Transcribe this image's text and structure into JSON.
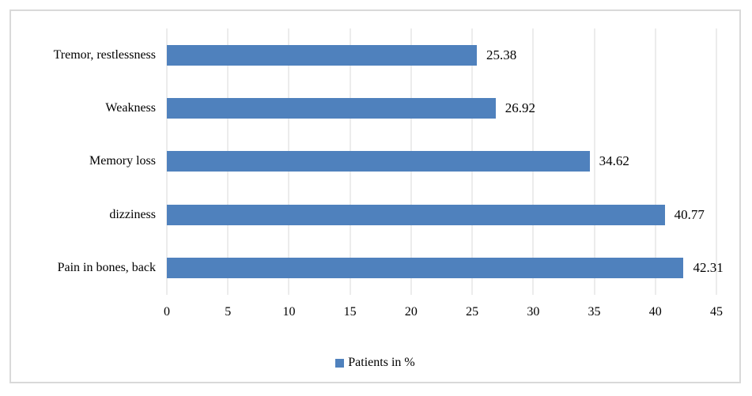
{
  "chart_data": {
    "type": "bar",
    "orientation": "horizontal",
    "title": "",
    "categories": [
      "Tremor, restlessness",
      "Weakness",
      "Memory loss",
      "dizziness",
      "Pain in bones, back"
    ],
    "values": [
      25.38,
      26.92,
      34.62,
      40.77,
      42.31
    ],
    "value_labels": [
      "25.38",
      "26.92",
      "34.62",
      "40.77",
      "42.31"
    ],
    "series_name": "Patients in %",
    "xlabel": "",
    "ylabel": "",
    "xlim": [
      0,
      45
    ],
    "xticks": [
      0,
      5,
      10,
      15,
      20,
      25,
      30,
      35,
      40,
      45
    ],
    "grid": "vertical-gridlines-on",
    "legend_position": "bottom-center",
    "colors": {
      "bar": "#4F81BD",
      "gridline": "#D9D9D9",
      "frame_border": "#D9D9D9",
      "text": "#000000",
      "background": "#FFFFFF"
    }
  },
  "legend": {
    "label": "Patients in %"
  }
}
